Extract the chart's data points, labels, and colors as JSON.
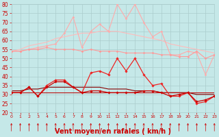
{
  "background_color": "#c5e8e8",
  "grid_color": "#aacccc",
  "xlabel": "Vent moyen/en rafales ( km/h )",
  "xlabel_color": "#cc0000",
  "xlabel_fontsize": 7,
  "ylim": [
    20,
    80
  ],
  "xlim": [
    0,
    23
  ],
  "yticks": [
    20,
    25,
    30,
    35,
    40,
    45,
    50,
    55,
    60,
    65,
    70,
    75,
    80
  ],
  "xticks": [
    0,
    1,
    2,
    3,
    4,
    5,
    6,
    7,
    8,
    9,
    10,
    11,
    12,
    13,
    14,
    15,
    16,
    17,
    18,
    19,
    20,
    21,
    22,
    23
  ],
  "tick_color": "#cc0000",
  "tick_fontsize": 5.5,
  "series": [
    {
      "name": "light_pink_rafales",
      "color": "#ffaaaa",
      "linewidth": 0.8,
      "marker": "D",
      "markersize": 1.5,
      "data": [
        54,
        54,
        55,
        56,
        57,
        58,
        64,
        73,
        56,
        65,
        69,
        65,
        80,
        72,
        80,
        70,
        62,
        65,
        52,
        52,
        54,
        53,
        41,
        52
      ]
    },
    {
      "name": "medium_pink_flat",
      "color": "#ff9999",
      "linewidth": 0.8,
      "marker": "D",
      "markersize": 1.5,
      "data": [
        54,
        54,
        55,
        55,
        56,
        55,
        55,
        55,
        54,
        55,
        54,
        54,
        54,
        53,
        53,
        53,
        53,
        52,
        52,
        51,
        51,
        54,
        50,
        52
      ]
    },
    {
      "name": "pink_trend_up",
      "color": "#ffbbbb",
      "linewidth": 0.8,
      "marker": null,
      "markersize": 0,
      "data": [
        54,
        55,
        57,
        58,
        59,
        61,
        62,
        63,
        64,
        64,
        65,
        65,
        65,
        64,
        63,
        62,
        61,
        60,
        58,
        57,
        56,
        55,
        54,
        53
      ]
    },
    {
      "name": "red_rafales_volatile",
      "color": "#ee2222",
      "linewidth": 0.9,
      "marker": "D",
      "markersize": 1.8,
      "data": [
        31,
        31,
        34,
        29,
        35,
        38,
        38,
        34,
        31,
        42,
        43,
        41,
        50,
        43,
        50,
        41,
        35,
        36,
        29,
        29,
        31,
        25,
        26,
        29
      ]
    },
    {
      "name": "red_moyen_volatile",
      "color": "#cc0000",
      "linewidth": 0.9,
      "marker": "D",
      "markersize": 1.8,
      "data": [
        31,
        31,
        34,
        29,
        34,
        37,
        37,
        34,
        31,
        32,
        32,
        31,
        31,
        31,
        31,
        32,
        32,
        31,
        29,
        30,
        31,
        26,
        27,
        29
      ]
    },
    {
      "name": "dark_red_trend",
      "color": "#880000",
      "linewidth": 0.8,
      "marker": null,
      "markersize": 0,
      "data": [
        32,
        32,
        33,
        33,
        34,
        34,
        34,
        34,
        34,
        34,
        34,
        33,
        33,
        33,
        32,
        32,
        32,
        31,
        31,
        31,
        31,
        30,
        30,
        30
      ]
    },
    {
      "name": "red_flat_low",
      "color": "#bb1111",
      "linewidth": 0.8,
      "marker": null,
      "markersize": 0,
      "data": [
        31,
        31,
        31,
        31,
        31,
        31,
        31,
        31,
        31,
        31,
        31,
        31,
        31,
        31,
        31,
        31,
        31,
        31,
        31,
        31,
        31,
        31,
        31,
        31
      ]
    }
  ],
  "arrow_color": "#cc0000"
}
